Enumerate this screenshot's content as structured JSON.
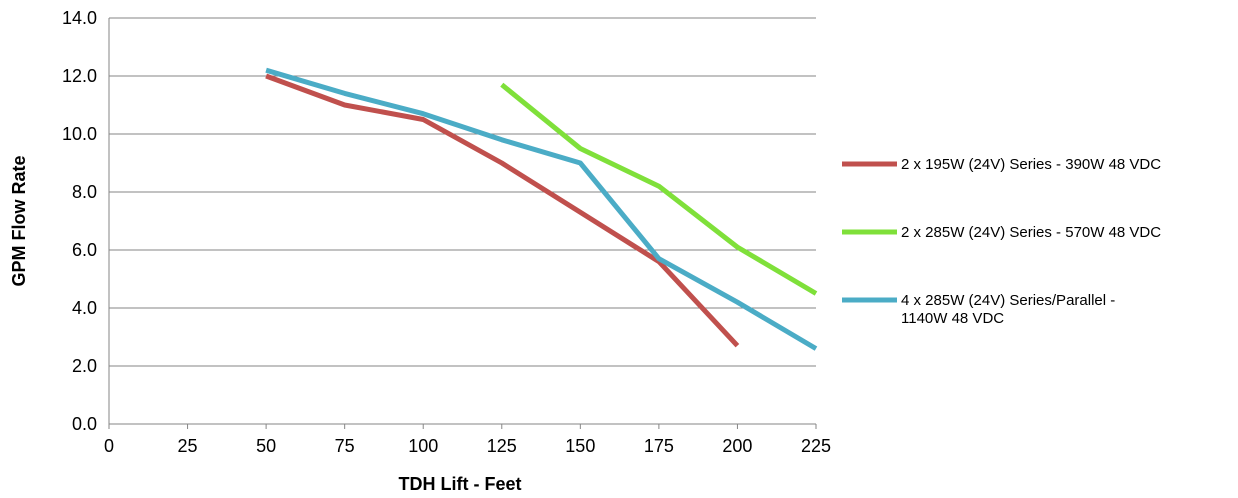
{
  "chart_data": {
    "type": "line",
    "xlabel": "TDH Lift - Feet",
    "ylabel": "GPM Flow Rate",
    "xlim": [
      0,
      225
    ],
    "ylim": [
      0,
      14
    ],
    "x_ticks": [
      "0",
      "25",
      "50",
      "75",
      "100",
      "125",
      "150",
      "175",
      "200",
      "225"
    ],
    "y_ticks": [
      "0.0",
      "2.0",
      "4.0",
      "6.0",
      "8.0",
      "10.0",
      "12.0",
      "14.0"
    ],
    "grid": "horizontal",
    "legend_position": "right",
    "series": [
      {
        "name": "2 x 195W (24V) Series - 390W 48 VDC",
        "legend_lines": [
          "2 x 195W (24V) Series - 390W 48 VDC"
        ],
        "color": "#C0504D",
        "x": [
          50,
          75,
          100,
          125,
          150,
          175,
          200
        ],
        "y": [
          12.0,
          11.0,
          10.5,
          9.0,
          7.3,
          5.6,
          2.7
        ]
      },
      {
        "name": "2 x 285W (24V) Series - 570W 48 VDC",
        "legend_lines": [
          "2 x 285W (24V) Series - 570W 48 VDC"
        ],
        "color": "#7FE03A",
        "x": [
          125,
          150,
          175,
          200,
          225
        ],
        "y": [
          11.7,
          9.5,
          8.2,
          6.1,
          4.5
        ]
      },
      {
        "name": "4 x 285W (24V) Series/Parallel - 1140W 48 VDC",
        "legend_lines": [
          "4 x 285W (24V) Series/Parallel -",
          "1140W 48 VDC"
        ],
        "color": "#4BACC6",
        "x": [
          50,
          75,
          100,
          125,
          150,
          175,
          200,
          225
        ],
        "y": [
          12.2,
          11.4,
          10.7,
          9.8,
          9.0,
          5.7,
          4.2,
          2.6
        ]
      }
    ]
  }
}
